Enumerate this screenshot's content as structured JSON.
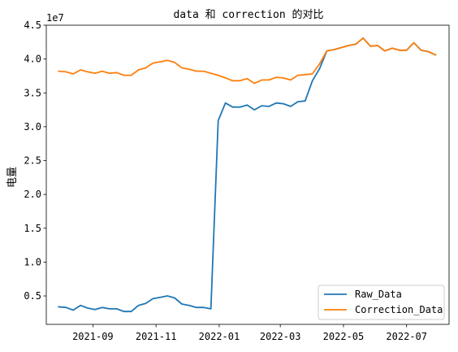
{
  "chart_data": {
    "type": "line",
    "title": "data 和 correction 的对比",
    "xlabel": "",
    "ylabel": "电量",
    "y_offset_label": "1e7",
    "y_scale": 10000000,
    "ylim": [
      0.08,
      4.5
    ],
    "xlim": [
      "2021-07-18",
      "2022-08-11"
    ],
    "yticks": [
      0.5,
      1.0,
      1.5,
      2.0,
      2.5,
      3.0,
      3.5,
      4.0,
      4.5
    ],
    "ytick_labels": [
      "0.5",
      "1.0",
      "1.5",
      "2.0",
      "2.5",
      "3.0",
      "3.5",
      "4.0",
      "4.5"
    ],
    "xticks": [
      "2021-09-01",
      "2021-11-01",
      "2022-01-01",
      "2022-03-01",
      "2022-05-01",
      "2022-07-01"
    ],
    "xtick_labels": [
      "2021-09",
      "2021-11",
      "2022-01",
      "2022-03",
      "2022-05",
      "2022-07"
    ],
    "grid": false,
    "legend_position": "bottom-right",
    "x": [
      "2021-07-30",
      "2021-08-06",
      "2021-08-13",
      "2021-08-20",
      "2021-08-27",
      "2021-09-03",
      "2021-09-10",
      "2021-09-17",
      "2021-09-24",
      "2021-10-01",
      "2021-10-08",
      "2021-10-15",
      "2021-10-22",
      "2021-10-29",
      "2021-11-05",
      "2021-11-12",
      "2021-11-19",
      "2021-11-26",
      "2021-12-03",
      "2021-12-10",
      "2021-12-17",
      "2021-12-24",
      "2021-12-31",
      "2022-01-07",
      "2022-01-14",
      "2022-01-21",
      "2022-01-28",
      "2022-02-04",
      "2022-02-11",
      "2022-02-18",
      "2022-02-25",
      "2022-03-04",
      "2022-03-11",
      "2022-03-18",
      "2022-03-25",
      "2022-04-01",
      "2022-04-08",
      "2022-04-15",
      "2022-04-22",
      "2022-04-29",
      "2022-05-06",
      "2022-05-13",
      "2022-05-20",
      "2022-05-27",
      "2022-06-03",
      "2022-06-10",
      "2022-06-17",
      "2022-06-24",
      "2022-07-01",
      "2022-07-08",
      "2022-07-15",
      "2022-07-22",
      "2022-07-29"
    ],
    "series": [
      {
        "name": "Raw_Data",
        "color": "#1f77b4",
        "values": [
          0.34,
          0.33,
          0.29,
          0.36,
          0.32,
          0.3,
          0.33,
          0.31,
          0.31,
          0.27,
          0.27,
          0.36,
          0.39,
          0.46,
          0.48,
          0.5,
          0.47,
          0.38,
          0.36,
          0.33,
          0.33,
          0.31,
          3.09,
          3.35,
          3.29,
          3.29,
          3.32,
          3.25,
          3.31,
          3.3,
          3.35,
          3.34,
          3.3,
          3.37,
          3.38,
          3.68,
          3.86,
          4.12,
          4.14,
          4.17,
          4.2,
          4.22,
          4.31,
          4.19,
          4.2,
          4.12,
          4.16,
          4.13,
          4.13,
          4.24,
          4.13,
          4.11,
          4.06
        ]
      },
      {
        "name": "Correction_Data",
        "color": "#ff7f0e",
        "values": [
          3.82,
          3.81,
          3.78,
          3.84,
          3.81,
          3.79,
          3.82,
          3.79,
          3.8,
          3.76,
          3.76,
          3.84,
          3.87,
          3.94,
          3.96,
          3.98,
          3.95,
          3.87,
          3.85,
          3.82,
          3.82,
          3.79,
          3.76,
          3.72,
          3.68,
          3.68,
          3.71,
          3.64,
          3.69,
          3.69,
          3.73,
          3.72,
          3.69,
          3.76,
          3.77,
          3.78,
          3.93,
          4.12,
          4.14,
          4.17,
          4.2,
          4.22,
          4.31,
          4.19,
          4.2,
          4.12,
          4.16,
          4.13,
          4.13,
          4.24,
          4.13,
          4.11,
          4.06
        ]
      }
    ]
  }
}
